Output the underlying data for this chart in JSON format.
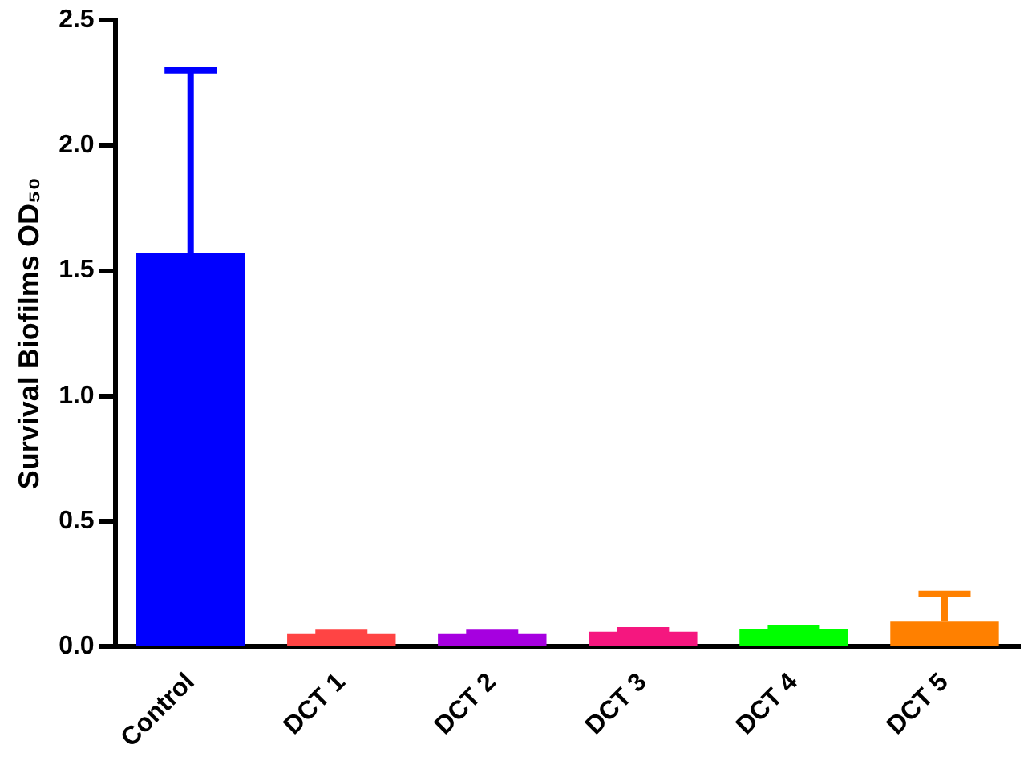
{
  "chart_data": {
    "type": "bar",
    "ylabel": "Survival Biofilms OD₅₀",
    "categories": [
      "Control",
      "DCT 1",
      "DCT 2",
      "DCT 3",
      "DCT 4",
      "DCT 5"
    ],
    "values": [
      1.57,
      0.05,
      0.05,
      0.06,
      0.07,
      0.1
    ],
    "colors": [
      "#0000ff",
      "#ff4444",
      "#a600e0",
      "#f5177f",
      "#00ff00",
      "#ff8000"
    ],
    "errors": [
      [
        1.57,
        2.3
      ],
      [
        0.05,
        0.055
      ],
      [
        0.05,
        0.055
      ],
      [
        0.06,
        0.065
      ],
      [
        0.07,
        0.075
      ],
      [
        0.1,
        0.21
      ]
    ],
    "ylim": [
      0,
      2.5
    ],
    "yticks": [
      {
        "value": 0,
        "label": "0.0"
      },
      0.5,
      {
        "value": 1,
        "label": "1.0"
      },
      1.5,
      {
        "value": 2,
        "label": "2.0"
      },
      2.5
    ],
    "grid": false,
    "legend": false
  }
}
